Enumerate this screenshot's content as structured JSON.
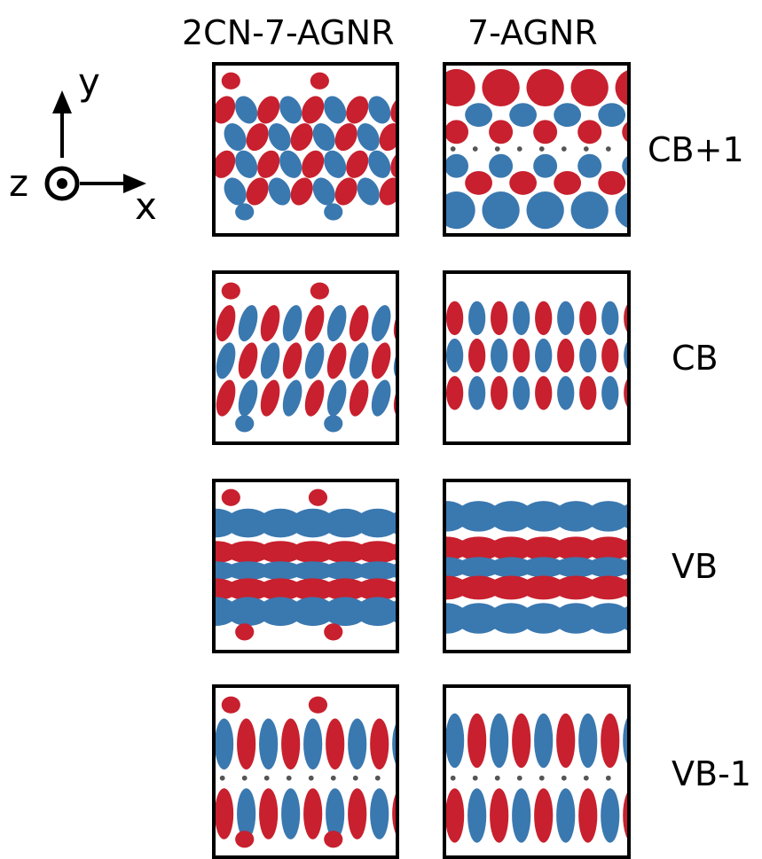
{
  "columns": [
    {
      "key": "cn",
      "title": "2CN-7-AGNR"
    },
    {
      "key": "pristine",
      "title": "7-AGNR"
    }
  ],
  "rows": [
    {
      "key": "cb1",
      "label": "CB+1"
    },
    {
      "key": "cb",
      "label": "CB"
    },
    {
      "key": "vb",
      "label": "VB"
    },
    {
      "key": "vb1",
      "label": "VB-1"
    }
  ],
  "axes": {
    "y": "y",
    "z": "z",
    "x": "x"
  },
  "colors": {
    "positive": "#c8202e",
    "negative": "#3a78b0",
    "atom": "#555555",
    "frame": "#000000"
  }
}
